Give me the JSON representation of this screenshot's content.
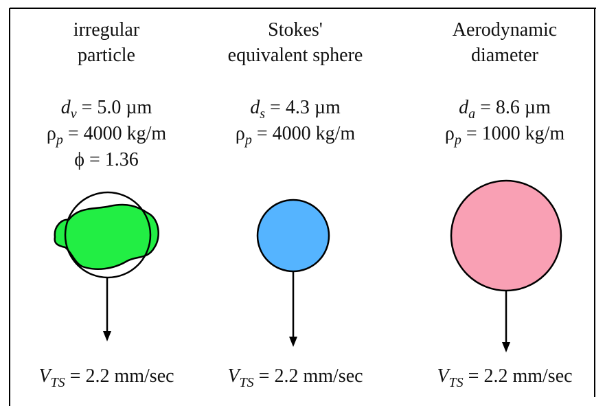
{
  "columns": [
    {
      "title": [
        "irregular",
        "particle"
      ],
      "params": [
        {
          "symbol": "d",
          "sub": "v",
          "text": " = 5.0 µm"
        },
        {
          "symbol": "ρ",
          "sub": "p",
          "text": " = 4000 kg/m"
        },
        {
          "symbol": "ϕ",
          "text": " = 1.36"
        }
      ],
      "velocity": {
        "symbol": "V",
        "sub": "TS",
        "text": " = 2.2 mm/sec"
      }
    },
    {
      "title": [
        "Stokes'",
        "equivalent sphere"
      ],
      "params": [
        {
          "symbol": "d",
          "sub": "s",
          "text": " = 4.3 µm"
        },
        {
          "symbol": "ρ",
          "sub": "p",
          "text": " = 4000 kg/m"
        }
      ],
      "velocity": {
        "symbol": "V",
        "sub": "TS",
        "text": " = 2.2 mm/sec"
      }
    },
    {
      "title": [
        "Aerodynamic",
        "diameter"
      ],
      "params": [
        {
          "symbol": "d",
          "sub": "a",
          "text": " = 8.6 µm"
        },
        {
          "symbol": "ρ",
          "sub": "p",
          "text": " = 1000 kg/m"
        }
      ],
      "velocity": {
        "symbol": "V",
        "sub": "TS",
        "text": " = 2.2 mm/sec"
      }
    }
  ]
}
